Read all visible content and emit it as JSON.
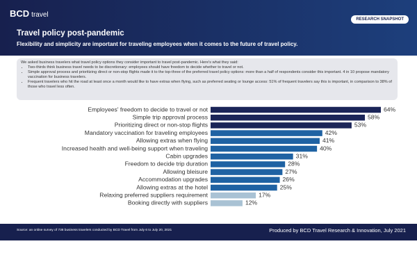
{
  "header": {
    "logo": "BCD",
    "logo_suffix": "travel",
    "badge": "RESEARCH SNAPSHOT",
    "title": "Travel policy post-pandemic",
    "subtitle": "Flexibility and simplicity are important for traveling employees when it comes to the future of travel policy."
  },
  "intro": {
    "lead": "We asked business travelers what travel policy options they consider important to travel post-pandemic. Here's what they said:",
    "bullets": [
      "Two-thirds think business travel needs to be discretionary: employees should have freedom to decide whether to travel or not.",
      "Simple approval process and prioritizing direct or non-stop flights made it to the top-three of the preferred travel policy options: more than a half of respondents consider this important. 4 in 10 propose mandatory vaccination for business travelers.",
      "Frequent travelers who hit the road at least once a month would like to have extras when flying, such as preferred seating or lounge access: 51% of frequent travelers say this is important, in comparison to 38% of those who travel less often."
    ]
  },
  "chart_data": {
    "type": "bar",
    "orientation": "horizontal",
    "categories": [
      "Employees' freedom to decide to travel or not",
      "Simple trip approval process",
      "Prioritizing direct or non-stop flights",
      "Mandatory vaccination for traveling employees",
      "Allowing extras when flying",
      "Increased health and well-being support when traveling",
      "Cabin upgrades",
      "Freedom to decide trip duration",
      "Allowing bleisure",
      "Accommodation upgrades",
      "Allowing extras at the hotel",
      "Relaxing preferred suppliers requirement",
      "Booking directly with suppliers"
    ],
    "values": [
      64,
      58,
      53,
      42,
      41,
      40,
      31,
      28,
      27,
      26,
      25,
      17,
      12
    ],
    "value_labels": [
      "64%",
      "58%",
      "53%",
      "42%",
      "41%",
      "40%",
      "31%",
      "28%",
      "27%",
      "26%",
      "25%",
      "17%",
      "12%"
    ],
    "colors": [
      "#1b2558",
      "#1b2558",
      "#1b2558",
      "#1f62a3",
      "#1f62a3",
      "#1f62a3",
      "#1f62a3",
      "#1f62a3",
      "#1f62a3",
      "#1f62a3",
      "#1f62a3",
      "#a9c2d4",
      "#a9c2d4"
    ]
  },
  "footer": {
    "source": "Source: an online survey of 738 business travelers conducted by BCD Travel from July 6 to July 20, 2021",
    "credit": "Produced by BCD Travel Research & Innovation, July 2021"
  }
}
